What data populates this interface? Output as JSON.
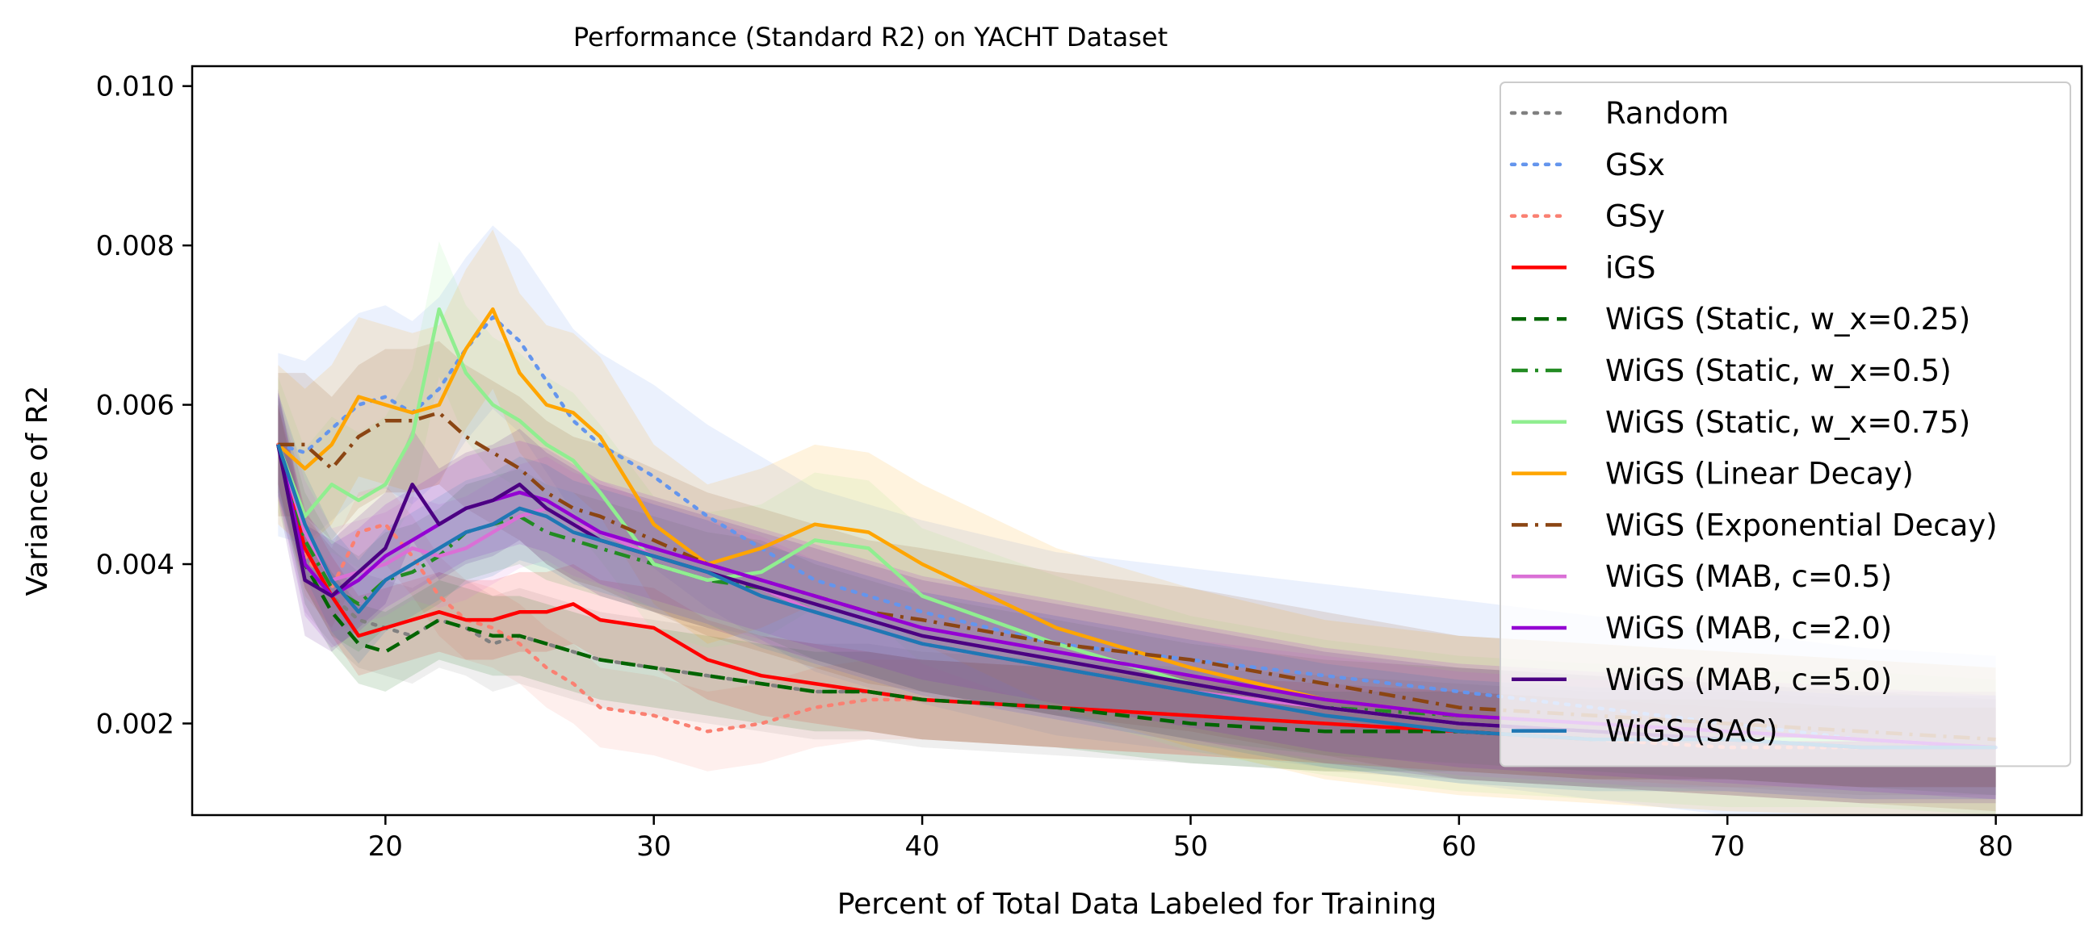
{
  "chart_data": {
    "type": "line",
    "title": "Performance (Standard R2) on YACHT Dataset",
    "xlabel": "Percent of Total Data Labeled for Training",
    "ylabel": "Variance of R2",
    "xlim": [
      12.8,
      83.2
    ],
    "ylim": [
      0.00085,
      0.01025
    ],
    "xticks": [
      20,
      30,
      40,
      50,
      60,
      70,
      80
    ],
    "xtick_labels": [
      "20",
      "30",
      "40",
      "50",
      "60",
      "70",
      "80"
    ],
    "yticks": [
      0.002,
      0.004,
      0.006,
      0.008,
      0.01
    ],
    "ytick_labels": [
      "0.002",
      "0.004",
      "0.006",
      "0.008",
      "0.010"
    ],
    "grid": false,
    "legend_position": "upper-right",
    "x": [
      16,
      17,
      18,
      19,
      20,
      21,
      22,
      23,
      24,
      25,
      26,
      27,
      28,
      30,
      32,
      34,
      36,
      38,
      40,
      45,
      50,
      55,
      60,
      65,
      70,
      75,
      80
    ],
    "series": [
      {
        "name": "Random",
        "color": "#808080",
        "style": "dotted",
        "band_width": 0.0012,
        "values": [
          0.0055,
          0.004,
          0.0036,
          0.0033,
          0.0032,
          0.0031,
          0.0033,
          0.0032,
          0.003,
          0.0031,
          0.003,
          0.0029,
          0.0028,
          0.0027,
          0.0026,
          0.0025,
          0.0024,
          0.0024,
          0.0023,
          0.0022,
          0.0021,
          0.002,
          0.0019,
          0.0018,
          0.0018,
          0.0017,
          0.0017
        ]
      },
      {
        "name": "GSx",
        "color": "#6495ED",
        "style": "dotted",
        "band_width": 0.0023,
        "values": [
          0.0055,
          0.0054,
          0.0057,
          0.006,
          0.0061,
          0.0059,
          0.0062,
          0.0067,
          0.0071,
          0.0068,
          0.0063,
          0.0058,
          0.0055,
          0.0051,
          0.0046,
          0.0042,
          0.0038,
          0.0036,
          0.0034,
          0.003,
          0.0028,
          0.0026,
          0.0024,
          0.0022,
          0.002,
          0.0018,
          0.0017
        ]
      },
      {
        "name": "GSy",
        "color": "#FA8072",
        "style": "dotted",
        "band_width": 0.001,
        "values": [
          0.0055,
          0.0041,
          0.0037,
          0.0044,
          0.0045,
          0.0041,
          0.0036,
          0.0033,
          0.0032,
          0.003,
          0.0027,
          0.0025,
          0.0022,
          0.0021,
          0.0019,
          0.002,
          0.0022,
          0.0023,
          0.0023,
          0.0022,
          0.0021,
          0.002,
          0.0019,
          0.0018,
          0.0017,
          0.0017,
          0.0017
        ]
      },
      {
        "name": "iGS",
        "color": "#FF0000",
        "style": "solid",
        "band_width": 0.001,
        "values": [
          0.0055,
          0.0042,
          0.0036,
          0.0031,
          0.0032,
          0.0033,
          0.0034,
          0.0033,
          0.0033,
          0.0034,
          0.0034,
          0.0035,
          0.0033,
          0.0032,
          0.0028,
          0.0026,
          0.0025,
          0.0024,
          0.0023,
          0.0022,
          0.0021,
          0.002,
          0.0019,
          0.0018,
          0.0018,
          0.0017,
          0.0017
        ]
      },
      {
        "name": "WiGS (Static, w_x=0.25)",
        "color": "#006400",
        "style": "dashed",
        "band_width": 0.001,
        "values": [
          0.0055,
          0.004,
          0.0034,
          0.003,
          0.0029,
          0.0031,
          0.0033,
          0.0032,
          0.0031,
          0.0031,
          0.003,
          0.0029,
          0.0028,
          0.0027,
          0.0026,
          0.0025,
          0.0024,
          0.0024,
          0.0023,
          0.0022,
          0.002,
          0.0019,
          0.0019,
          0.0018,
          0.0018,
          0.0017,
          0.0017
        ]
      },
      {
        "name": "WiGS (Static, w_x=0.5)",
        "color": "#228B22",
        "style": "dashdot",
        "band_width": 0.0012,
        "values": [
          0.0055,
          0.0043,
          0.0037,
          0.0035,
          0.0038,
          0.0039,
          0.0041,
          0.0044,
          0.0045,
          0.0046,
          0.0044,
          0.0043,
          0.0042,
          0.004,
          0.0038,
          0.0037,
          0.0034,
          0.0032,
          0.003,
          0.0027,
          0.0024,
          0.0022,
          0.0021,
          0.002,
          0.0019,
          0.0018,
          0.0017
        ]
      },
      {
        "name": "WiGS (Static, w_x=0.75)",
        "color": "#90EE90",
        "style": "solid",
        "band_width": 0.0017,
        "values": [
          0.0055,
          0.0046,
          0.005,
          0.0048,
          0.005,
          0.0056,
          0.0072,
          0.0064,
          0.006,
          0.0058,
          0.0055,
          0.0053,
          0.0049,
          0.004,
          0.0038,
          0.0039,
          0.0043,
          0.0042,
          0.0036,
          0.003,
          0.0025,
          0.0022,
          0.002,
          0.0019,
          0.0018,
          0.0018,
          0.0017
        ]
      },
      {
        "name": "WiGS (Linear Decay)",
        "color": "#FFA500",
        "style": "solid",
        "band_width": 0.002,
        "values": [
          0.0055,
          0.0052,
          0.0055,
          0.0061,
          0.006,
          0.0059,
          0.006,
          0.0067,
          0.0072,
          0.0064,
          0.006,
          0.0059,
          0.0056,
          0.0045,
          0.004,
          0.0042,
          0.0045,
          0.0044,
          0.004,
          0.0032,
          0.0027,
          0.0023,
          0.0021,
          0.002,
          0.0019,
          0.0018,
          0.0017
        ]
      },
      {
        "name": "WiGS (Exponential Decay)",
        "color": "#8B4513",
        "style": "dashdot",
        "band_width": 0.0018,
        "values": [
          0.0055,
          0.0055,
          0.0052,
          0.0056,
          0.0058,
          0.0058,
          0.0059,
          0.0056,
          0.0054,
          0.0052,
          0.0049,
          0.0047,
          0.0046,
          0.0043,
          0.004,
          0.0038,
          0.0036,
          0.0034,
          0.0033,
          0.003,
          0.0028,
          0.0025,
          0.0022,
          0.0021,
          0.002,
          0.0019,
          0.0018
        ]
      },
      {
        "name": "WiGS (MAB, c=0.5)",
        "color": "#DA70D6",
        "style": "solid",
        "band_width": 0.0013,
        "values": [
          0.0055,
          0.0044,
          0.0038,
          0.0039,
          0.004,
          0.0042,
          0.0041,
          0.0042,
          0.0044,
          0.0046,
          0.0047,
          0.0045,
          0.0044,
          0.0041,
          0.0039,
          0.0037,
          0.0034,
          0.0032,
          0.003,
          0.0027,
          0.0024,
          0.0022,
          0.002,
          0.0019,
          0.0018,
          0.0017,
          0.0017
        ]
      },
      {
        "name": "WiGS (MAB, c=2.0)",
        "color": "#9400D3",
        "style": "solid",
        "band_width": 0.0013,
        "values": [
          0.0055,
          0.004,
          0.0036,
          0.0038,
          0.0041,
          0.0043,
          0.0045,
          0.0047,
          0.0048,
          0.0049,
          0.0048,
          0.0046,
          0.0044,
          0.0042,
          0.004,
          0.0038,
          0.0036,
          0.0034,
          0.0032,
          0.0029,
          0.0026,
          0.0023,
          0.0021,
          0.002,
          0.0019,
          0.0018,
          0.0017
        ]
      },
      {
        "name": "WiGS (MAB, c=5.0)",
        "color": "#4B0082",
        "style": "solid",
        "band_width": 0.0014,
        "values": [
          0.0055,
          0.0038,
          0.0036,
          0.0039,
          0.0042,
          0.005,
          0.0045,
          0.0047,
          0.0048,
          0.005,
          0.0047,
          0.0045,
          0.0043,
          0.0041,
          0.0039,
          0.0037,
          0.0035,
          0.0033,
          0.0031,
          0.0028,
          0.0025,
          0.0022,
          0.002,
          0.0019,
          0.0018,
          0.0017,
          0.0017
        ]
      },
      {
        "name": "WiGS (SAC)",
        "color": "#1F77B4",
        "style": "solid",
        "band_width": 0.0013,
        "values": [
          0.0055,
          0.0045,
          0.0038,
          0.0034,
          0.0038,
          0.004,
          0.0042,
          0.0044,
          0.0045,
          0.0047,
          0.0046,
          0.0044,
          0.0043,
          0.0041,
          0.0039,
          0.0036,
          0.0034,
          0.0032,
          0.003,
          0.0027,
          0.0024,
          0.0021,
          0.0019,
          0.0018,
          0.0018,
          0.0017,
          0.0017
        ]
      }
    ]
  }
}
